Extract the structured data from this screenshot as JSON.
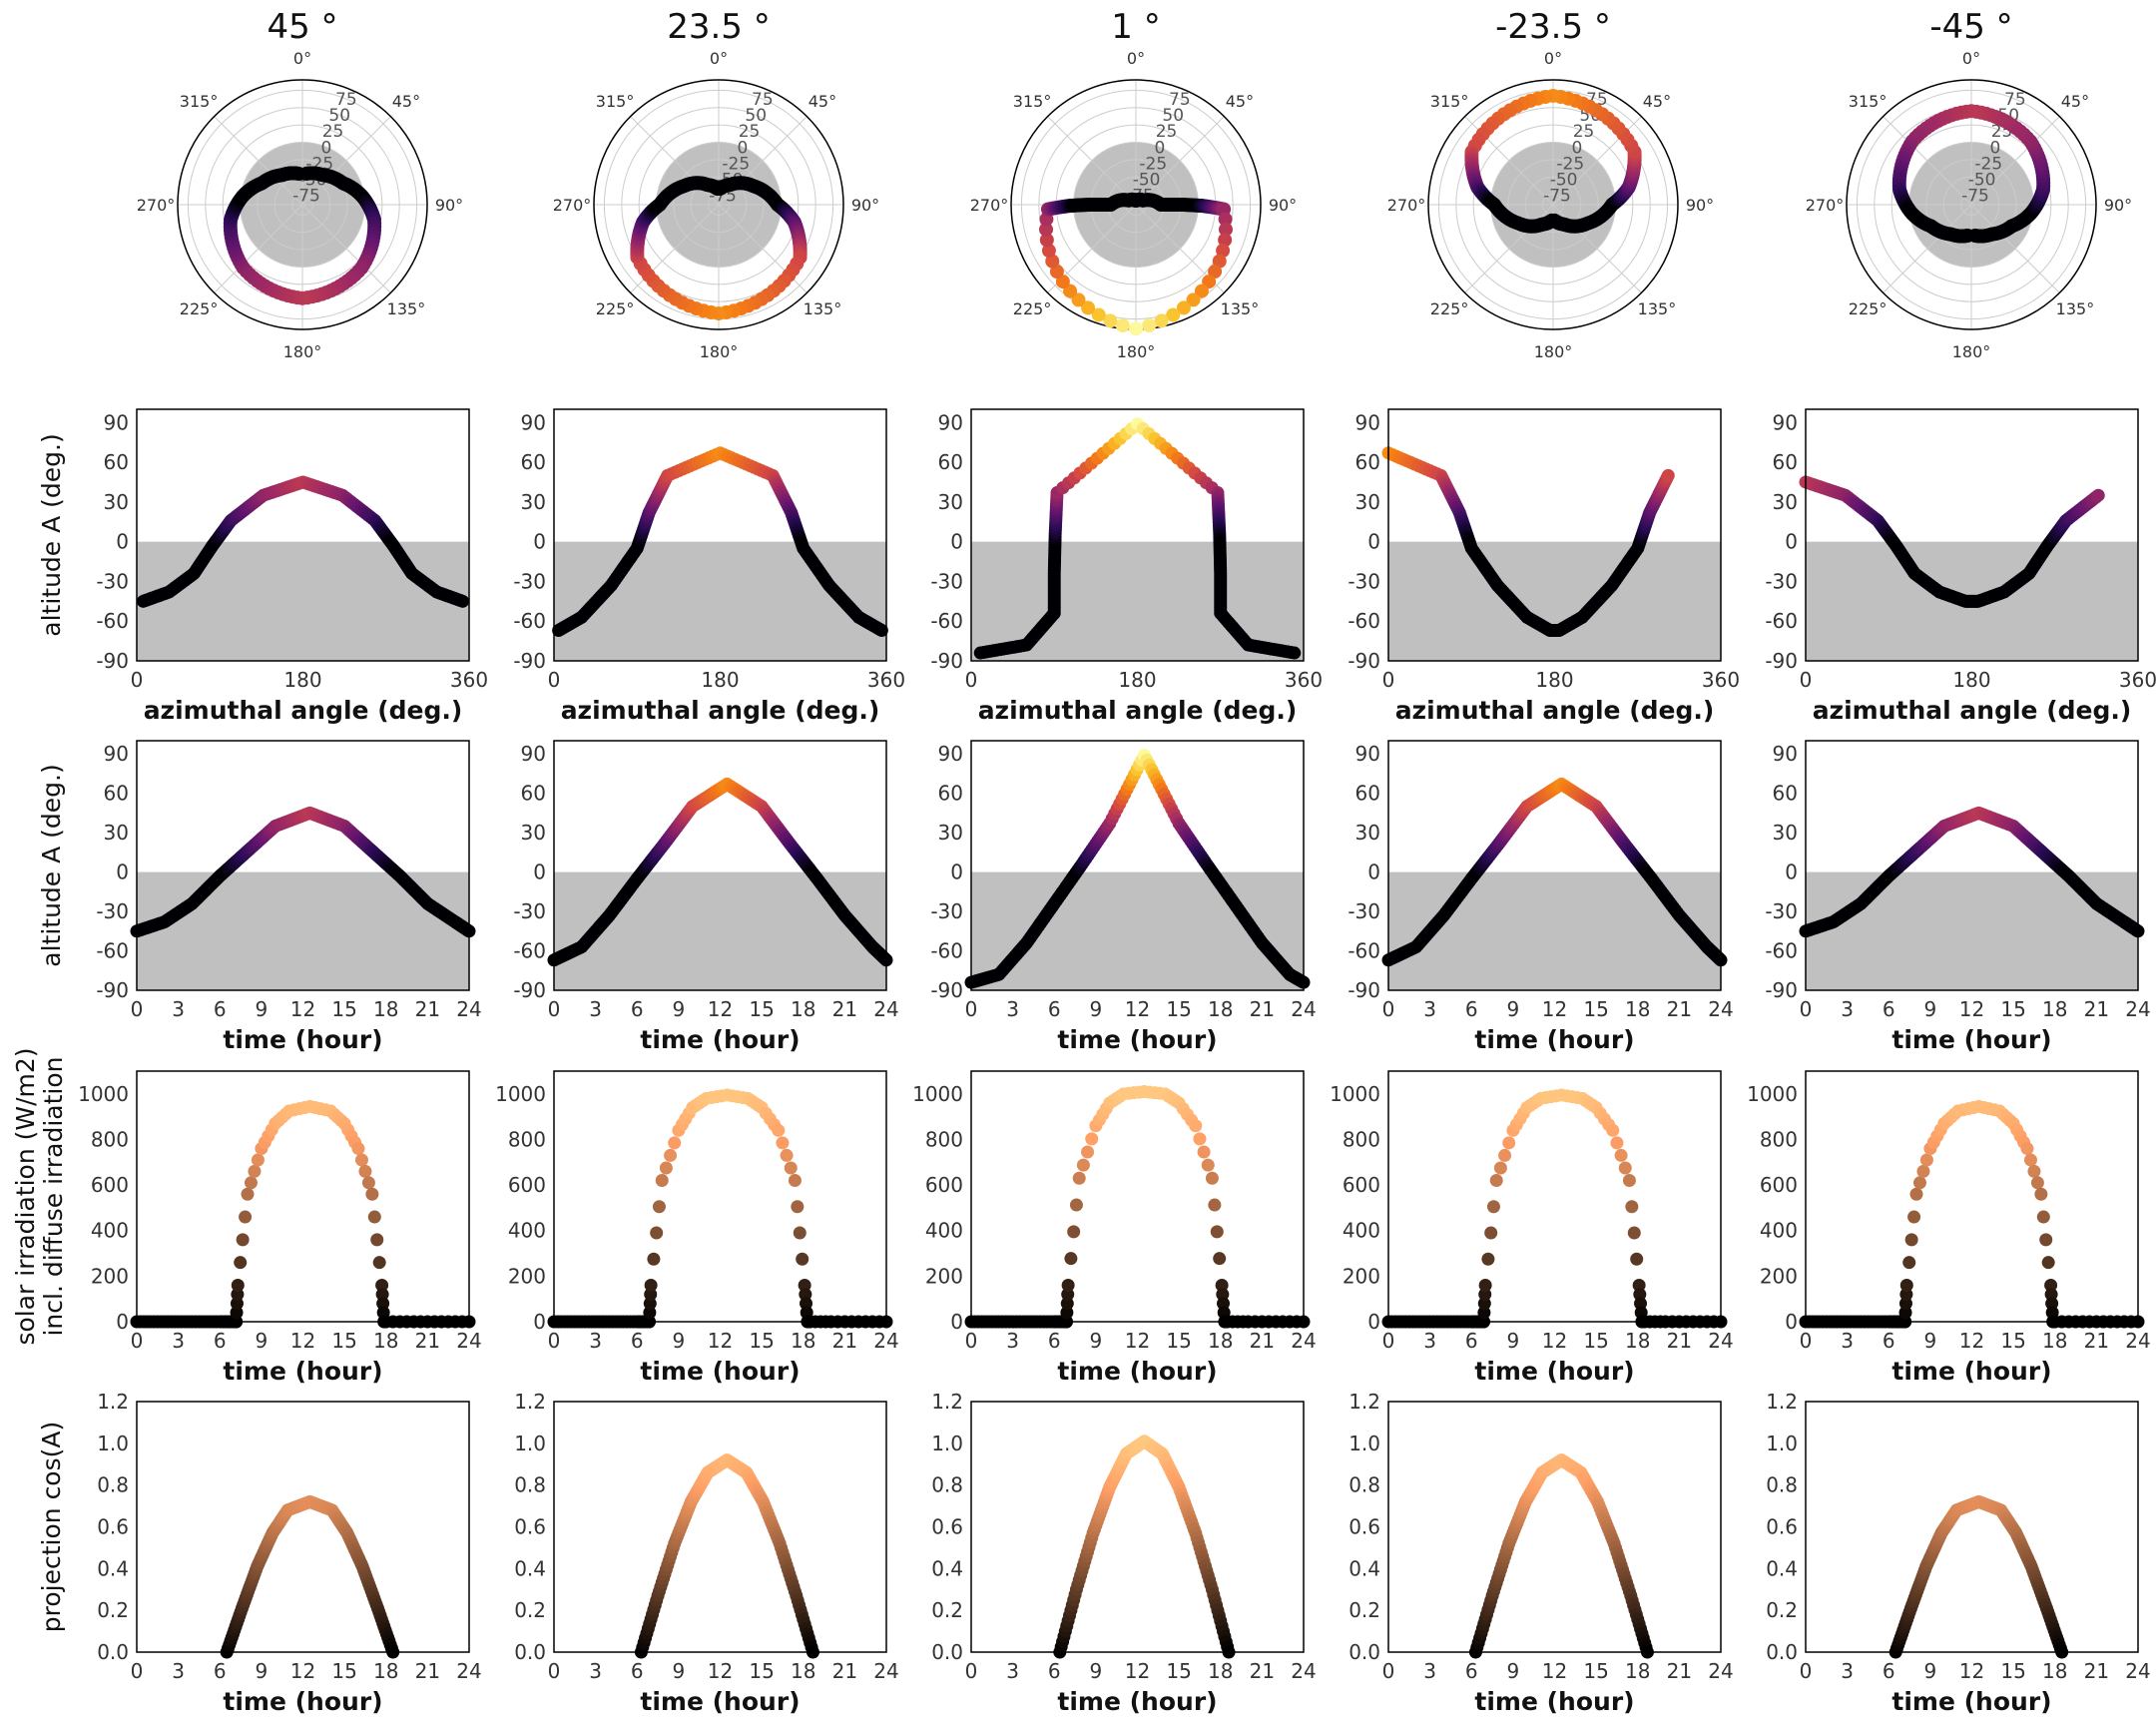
{
  "colors": {
    "shade": "#c0c0c0",
    "axis": "#000000",
    "grid": "#cccccc",
    "colormap_altitude": "inferno",
    "colormap_irradiation": "copper"
  },
  "chart_data": {
    "type": "scatter",
    "layout": "5 columns (latitudes) x 5 rows",
    "columns": [
      {
        "title": "45 °",
        "latitude": 45
      },
      {
        "title": "23.5 °",
        "latitude": 23.5
      },
      {
        "title": "1 °",
        "latitude": 1
      },
      {
        "title": "-23.5 °",
        "latitude": -23.5
      },
      {
        "title": "-45 °",
        "latitude": -45
      }
    ],
    "rows": [
      {
        "kind": "polar",
        "description": "sun path: azimuth (angle) vs altitude (radius), shaded region is below horizon",
        "theta_ticks": [
          "0°",
          "45°",
          "90°",
          "135°",
          "180°",
          "225°",
          "270°",
          "315°"
        ],
        "r_ticks": [
          "75",
          "50",
          "25",
          "0",
          "-25",
          "-50",
          "-75"
        ],
        "r_range": [
          -90,
          90
        ],
        "shade_below": 0
      },
      {
        "kind": "cartesian",
        "x_key": "azimuth",
        "y_key": "altitude",
        "xlabel": "azimuthal angle (deg.)",
        "ylabel": "altitude A (deg.)",
        "xlim": [
          0,
          360
        ],
        "ylim": [
          -90,
          100
        ],
        "xticks": [
          "0",
          "180",
          "360"
        ],
        "yticks": [
          "90",
          "60",
          "30",
          "0",
          "-30",
          "-60",
          "-90"
        ],
        "shade_below": 0,
        "color_scale": "altitude"
      },
      {
        "kind": "cartesian",
        "x_key": "hour",
        "y_key": "altitude",
        "xlabel": "time (hour)",
        "ylabel": "altitude A (deg.)",
        "xlim": [
          0,
          24
        ],
        "ylim": [
          -90,
          100
        ],
        "xticks": [
          "0",
          "3",
          "6",
          "9",
          "12",
          "15",
          "18",
          "21",
          "24"
        ],
        "yticks": [
          "90",
          "60",
          "30",
          "0",
          "-30",
          "-60",
          "-90"
        ],
        "shade_below": 0,
        "color_scale": "altitude"
      },
      {
        "kind": "cartesian",
        "x_key": "hour",
        "y_key": "irradiation",
        "xlabel": "time (hour)",
        "ylabel": [
          "solar irradiation (W/m2)",
          "incl. diffuse irradiation"
        ],
        "xlim": [
          0,
          24
        ],
        "ylim": [
          0,
          1100
        ],
        "xticks": [
          "0",
          "3",
          "6",
          "9",
          "12",
          "15",
          "18",
          "21",
          "24"
        ],
        "yticks": [
          "1000",
          "800",
          "600",
          "400",
          "200",
          "0"
        ],
        "color_scale": "irradiation"
      },
      {
        "kind": "cartesian",
        "x_key": "hour",
        "y_key": "projection",
        "xlabel": "time (hour)",
        "ylabel": "projection cos(A)",
        "xlim": [
          0,
          24
        ],
        "ylim": [
          0,
          1.2
        ],
        "xticks": [
          "0",
          "3",
          "6",
          "9",
          "12",
          "15",
          "18",
          "21",
          "24"
        ],
        "yticks": [
          "1.2",
          "1.0",
          "0.8",
          "0.6",
          "0.4",
          "0.2",
          "0.0"
        ],
        "color_scale": "projection"
      }
    ],
    "series": [
      {
        "latitude": 45,
        "hour": [
          0,
          2,
          4,
          6,
          8,
          10,
          12.5,
          15,
          17,
          19,
          21,
          23,
          24
        ],
        "azimuth": [
          7,
          35,
          62,
          82,
          102,
          137,
          180,
          223,
          258,
          278,
          298,
          325,
          353
        ],
        "altitude": [
          -45,
          -38,
          -24,
          -3,
          16,
          35,
          45,
          35,
          16,
          -3,
          -24,
          -38,
          -45
        ],
        "irradiation": [
          0,
          0,
          0,
          0,
          0,
          0,
          0,
          0,
          0,
          0,
          0,
          0,
          0,
          0,
          0,
          160,
          560,
          760,
          870,
          925,
          945,
          925,
          870,
          760,
          560,
          160,
          0,
          0,
          0,
          0,
          0
        ],
        "irr_hour": [
          0,
          1,
          2,
          3,
          4,
          5,
          6,
          6.5,
          6.8,
          6.9,
          7.0,
          7.05,
          7.1,
          7.15,
          7.18,
          7.3,
          8,
          9,
          10,
          11,
          12.5,
          14,
          15,
          16,
          17,
          17.7,
          17.85,
          18,
          20,
          22,
          24
        ],
        "projection": [
          0,
          0.21,
          0.41,
          0.57,
          0.68,
          0.72,
          0.68,
          0.57,
          0.41,
          0.21,
          0
        ],
        "proj_hour": [
          6.5,
          7.6,
          8.7,
          9.8,
          10.9,
          12.5,
          14.1,
          15.2,
          16.3,
          17.4,
          18.5
        ]
      },
      {
        "latitude": 23.5,
        "hour": [
          0,
          2,
          4,
          6,
          8,
          10,
          12.5,
          15,
          17,
          19,
          21,
          23,
          24
        ],
        "azimuth": [
          5,
          30,
          62,
          90,
          103,
          123,
          180,
          237,
          257,
          270,
          298,
          330,
          355
        ],
        "altitude": [
          -67,
          -57,
          -33,
          -5,
          22,
          50,
          67,
          50,
          22,
          -5,
          -33,
          -57,
          -67
        ],
        "irradiation": [
          0,
          0,
          0,
          0,
          0,
          0,
          0,
          0,
          0,
          0,
          0,
          0,
          0,
          0,
          0,
          160,
          620,
          840,
          940,
          980,
          995,
          980,
          940,
          840,
          620,
          160,
          0,
          0,
          0,
          0,
          0
        ],
        "irr_hour": [
          0,
          1,
          2,
          3,
          4,
          5,
          6,
          6.3,
          6.5,
          6.6,
          6.7,
          6.75,
          6.8,
          6.85,
          6.88,
          7.0,
          7.8,
          9,
          10,
          11,
          12.5,
          14,
          15,
          16.2,
          17.4,
          18.1,
          18.3,
          18.5,
          20,
          22,
          24
        ],
        "projection": [
          0,
          0.27,
          0.52,
          0.72,
          0.86,
          0.92,
          0.86,
          0.72,
          0.52,
          0.27,
          0
        ],
        "proj_hour": [
          6.3,
          7.5,
          8.7,
          9.9,
          11.1,
          12.5,
          13.9,
          15.1,
          16.3,
          17.5,
          18.7
        ]
      },
      {
        "latitude": 1,
        "hour": [
          0,
          2,
          4,
          6,
          8,
          10,
          12.5,
          15,
          17,
          19,
          21,
          23,
          24
        ],
        "azimuth": [
          10,
          60,
          90,
          90,
          91,
          93,
          180,
          267,
          269,
          270,
          270,
          300,
          350
        ],
        "altitude": [
          -84,
          -78,
          -54,
          -24,
          6,
          37,
          89,
          37,
          6,
          -24,
          -54,
          -78,
          -84
        ],
        "irradiation": [
          0,
          0,
          0,
          0,
          0,
          0,
          0,
          0,
          0,
          0,
          0,
          0,
          0,
          0,
          0,
          160,
          630,
          860,
          960,
          1000,
          1010,
          1000,
          960,
          860,
          630,
          160,
          0,
          0,
          0,
          0,
          0
        ],
        "irr_hour": [
          0,
          1,
          2,
          3,
          4,
          5,
          6,
          6.3,
          6.5,
          6.6,
          6.7,
          6.75,
          6.8,
          6.85,
          6.88,
          7.0,
          7.8,
          9,
          10,
          11,
          12.5,
          14,
          15,
          16.2,
          17.4,
          18.1,
          18.3,
          18.5,
          20,
          22,
          24
        ],
        "projection": [
          0,
          0.3,
          0.57,
          0.79,
          0.95,
          1.01,
          0.95,
          0.79,
          0.57,
          0.3,
          0
        ],
        "proj_hour": [
          6.4,
          7.6,
          8.8,
          10.0,
          11.2,
          12.5,
          13.8,
          15.0,
          16.2,
          17.4,
          18.6
        ]
      },
      {
        "latitude": -23.5,
        "hour": [
          0,
          2,
          4,
          6,
          8,
          10,
          12.5,
          15,
          17,
          19,
          21,
          23,
          24
        ],
        "azimuth": [
          175,
          150,
          118,
          90,
          77,
          57,
          0,
          303,
          283,
          270,
          242,
          210,
          185
        ],
        "altitude": [
          -67,
          -57,
          -33,
          -5,
          22,
          50,
          67,
          50,
          22,
          -5,
          -33,
          -57,
          -67
        ],
        "irradiation": [
          0,
          0,
          0,
          0,
          0,
          0,
          0,
          0,
          0,
          0,
          0,
          0,
          0,
          0,
          0,
          160,
          620,
          840,
          940,
          980,
          995,
          980,
          940,
          840,
          620,
          160,
          0,
          0,
          0,
          0,
          0
        ],
        "irr_hour": [
          0,
          1,
          2,
          3,
          4,
          5,
          6,
          6.3,
          6.5,
          6.6,
          6.7,
          6.75,
          6.8,
          6.85,
          6.88,
          7.0,
          7.8,
          9,
          10,
          11,
          12.5,
          14,
          15,
          16.2,
          17.4,
          18.1,
          18.3,
          18.5,
          20,
          22,
          24
        ],
        "projection": [
          0,
          0.27,
          0.52,
          0.72,
          0.86,
          0.92,
          0.86,
          0.72,
          0.52,
          0.27,
          0
        ],
        "proj_hour": [
          6.3,
          7.5,
          8.7,
          9.9,
          11.1,
          12.5,
          13.9,
          15.1,
          16.3,
          17.5,
          18.7
        ]
      },
      {
        "latitude": -45,
        "hour": [
          0,
          2,
          4,
          6,
          8,
          10,
          12.5,
          15,
          17,
          19,
          21,
          23,
          24
        ],
        "azimuth": [
          173,
          145,
          118,
          98,
          78,
          43,
          0,
          317,
          282,
          262,
          242,
          215,
          187
        ],
        "altitude": [
          -45,
          -38,
          -24,
          -3,
          16,
          35,
          45,
          35,
          16,
          -3,
          -24,
          -38,
          -45
        ],
        "irradiation": [
          0,
          0,
          0,
          0,
          0,
          0,
          0,
          0,
          0,
          0,
          0,
          0,
          0,
          0,
          0,
          160,
          560,
          760,
          870,
          925,
          945,
          925,
          870,
          760,
          560,
          160,
          0,
          0,
          0,
          0,
          0
        ],
        "irr_hour": [
          0,
          1,
          2,
          3,
          4,
          5,
          6,
          6.5,
          6.8,
          6.9,
          7.0,
          7.05,
          7.1,
          7.15,
          7.18,
          7.3,
          8,
          9,
          10,
          11,
          12.5,
          14,
          15,
          16,
          17,
          17.7,
          17.85,
          18,
          20,
          22,
          24
        ],
        "projection": [
          0,
          0.21,
          0.41,
          0.57,
          0.68,
          0.72,
          0.68,
          0.57,
          0.41,
          0.21,
          0
        ],
        "proj_hour": [
          6.5,
          7.6,
          8.7,
          9.8,
          10.9,
          12.5,
          14.1,
          15.2,
          16.3,
          17.4,
          18.5
        ]
      }
    ]
  }
}
